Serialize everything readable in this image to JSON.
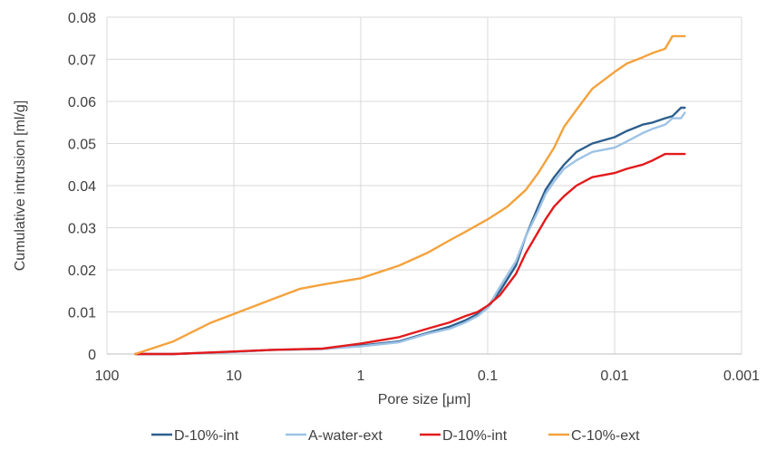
{
  "chart_data": {
    "type": "line",
    "title": "",
    "xlabel": "Pore size [μm]",
    "ylabel": "Cumulative  intrusion [ml/g]",
    "x_scale": "log",
    "x_reversed": true,
    "xlim": [
      100,
      0.001
    ],
    "ylim": [
      0,
      0.08
    ],
    "x_ticks": [
      100,
      10,
      1,
      0.1,
      0.01,
      0.001
    ],
    "x_tick_labels": [
      "100",
      "10",
      "1",
      "0.1",
      "0.01",
      "0.001"
    ],
    "y_ticks": [
      0,
      0.01,
      0.02,
      0.03,
      0.04,
      0.05,
      0.06,
      0.07,
      0.08
    ],
    "y_tick_labels": [
      "0",
      "0.01",
      "0.02",
      "0.03",
      "0.04",
      "0.05",
      "0.06",
      "0.07",
      "0.08"
    ],
    "grid": "vertical and horizontal major gridlines",
    "legend_position": "bottom",
    "series": [
      {
        "name": "D-10%-int",
        "color": "#2e5f8e",
        "x": [
          60,
          30,
          10,
          5,
          2,
          1,
          0.5,
          0.3,
          0.2,
          0.15,
          0.12,
          0.1,
          0.08,
          0.06,
          0.05,
          0.04,
          0.035,
          0.03,
          0.025,
          0.02,
          0.015,
          0.01,
          0.008,
          0.006,
          0.005,
          0.004,
          0.0035,
          0.003,
          0.0028
        ],
        "values": [
          0,
          0,
          0.0005,
          0.001,
          0.0012,
          0.002,
          0.003,
          0.005,
          0.0065,
          0.008,
          0.0095,
          0.011,
          0.015,
          0.021,
          0.028,
          0.035,
          0.039,
          0.042,
          0.045,
          0.048,
          0.05,
          0.0515,
          0.053,
          0.0545,
          0.055,
          0.056,
          0.0565,
          0.0585,
          0.0585
        ]
      },
      {
        "name": "A-water-ext",
        "color": "#9dc3e6",
        "x": [
          60,
          30,
          10,
          5,
          2,
          1,
          0.5,
          0.3,
          0.2,
          0.15,
          0.12,
          0.1,
          0.08,
          0.06,
          0.05,
          0.04,
          0.035,
          0.03,
          0.025,
          0.02,
          0.015,
          0.01,
          0.008,
          0.006,
          0.005,
          0.004,
          0.0035,
          0.003,
          0.0028
        ],
        "values": [
          0,
          0,
          0.0005,
          0.001,
          0.0012,
          0.0018,
          0.0028,
          0.0048,
          0.006,
          0.0075,
          0.009,
          0.011,
          0.016,
          0.022,
          0.028,
          0.034,
          0.038,
          0.041,
          0.044,
          0.046,
          0.048,
          0.049,
          0.0505,
          0.0525,
          0.0535,
          0.0545,
          0.056,
          0.056,
          0.0573
        ]
      },
      {
        "name": "D-10%-int",
        "color": "#e31a1c",
        "x": [
          60,
          30,
          10,
          5,
          2,
          1,
          0.5,
          0.3,
          0.2,
          0.15,
          0.12,
          0.1,
          0.08,
          0.06,
          0.05,
          0.04,
          0.035,
          0.03,
          0.025,
          0.02,
          0.015,
          0.01,
          0.008,
          0.006,
          0.005,
          0.004,
          0.0035,
          0.003,
          0.0028
        ],
        "values": [
          0,
          0,
          0.0006,
          0.001,
          0.0013,
          0.0025,
          0.004,
          0.006,
          0.0075,
          0.009,
          0.01,
          0.0115,
          0.014,
          0.019,
          0.024,
          0.029,
          0.032,
          0.035,
          0.0375,
          0.04,
          0.042,
          0.043,
          0.044,
          0.045,
          0.046,
          0.0475,
          0.0475,
          0.0475,
          0.0475
        ]
      },
      {
        "name": "C-10%-ext",
        "color": "#f4a23c",
        "x": [
          60,
          30,
          15,
          10,
          5,
          3,
          2,
          1,
          0.5,
          0.3,
          0.2,
          0.15,
          0.1,
          0.07,
          0.05,
          0.04,
          0.03,
          0.025,
          0.02,
          0.015,
          0.01,
          0.008,
          0.006,
          0.005,
          0.004,
          0.0035,
          0.003,
          0.0028
        ],
        "values": [
          0,
          0.003,
          0.0075,
          0.0095,
          0.013,
          0.0155,
          0.0165,
          0.018,
          0.021,
          0.024,
          0.027,
          0.029,
          0.032,
          0.035,
          0.039,
          0.043,
          0.049,
          0.054,
          0.058,
          0.063,
          0.067,
          0.069,
          0.0705,
          0.0715,
          0.0725,
          0.0755,
          0.0755,
          0.0755
        ]
      }
    ]
  }
}
